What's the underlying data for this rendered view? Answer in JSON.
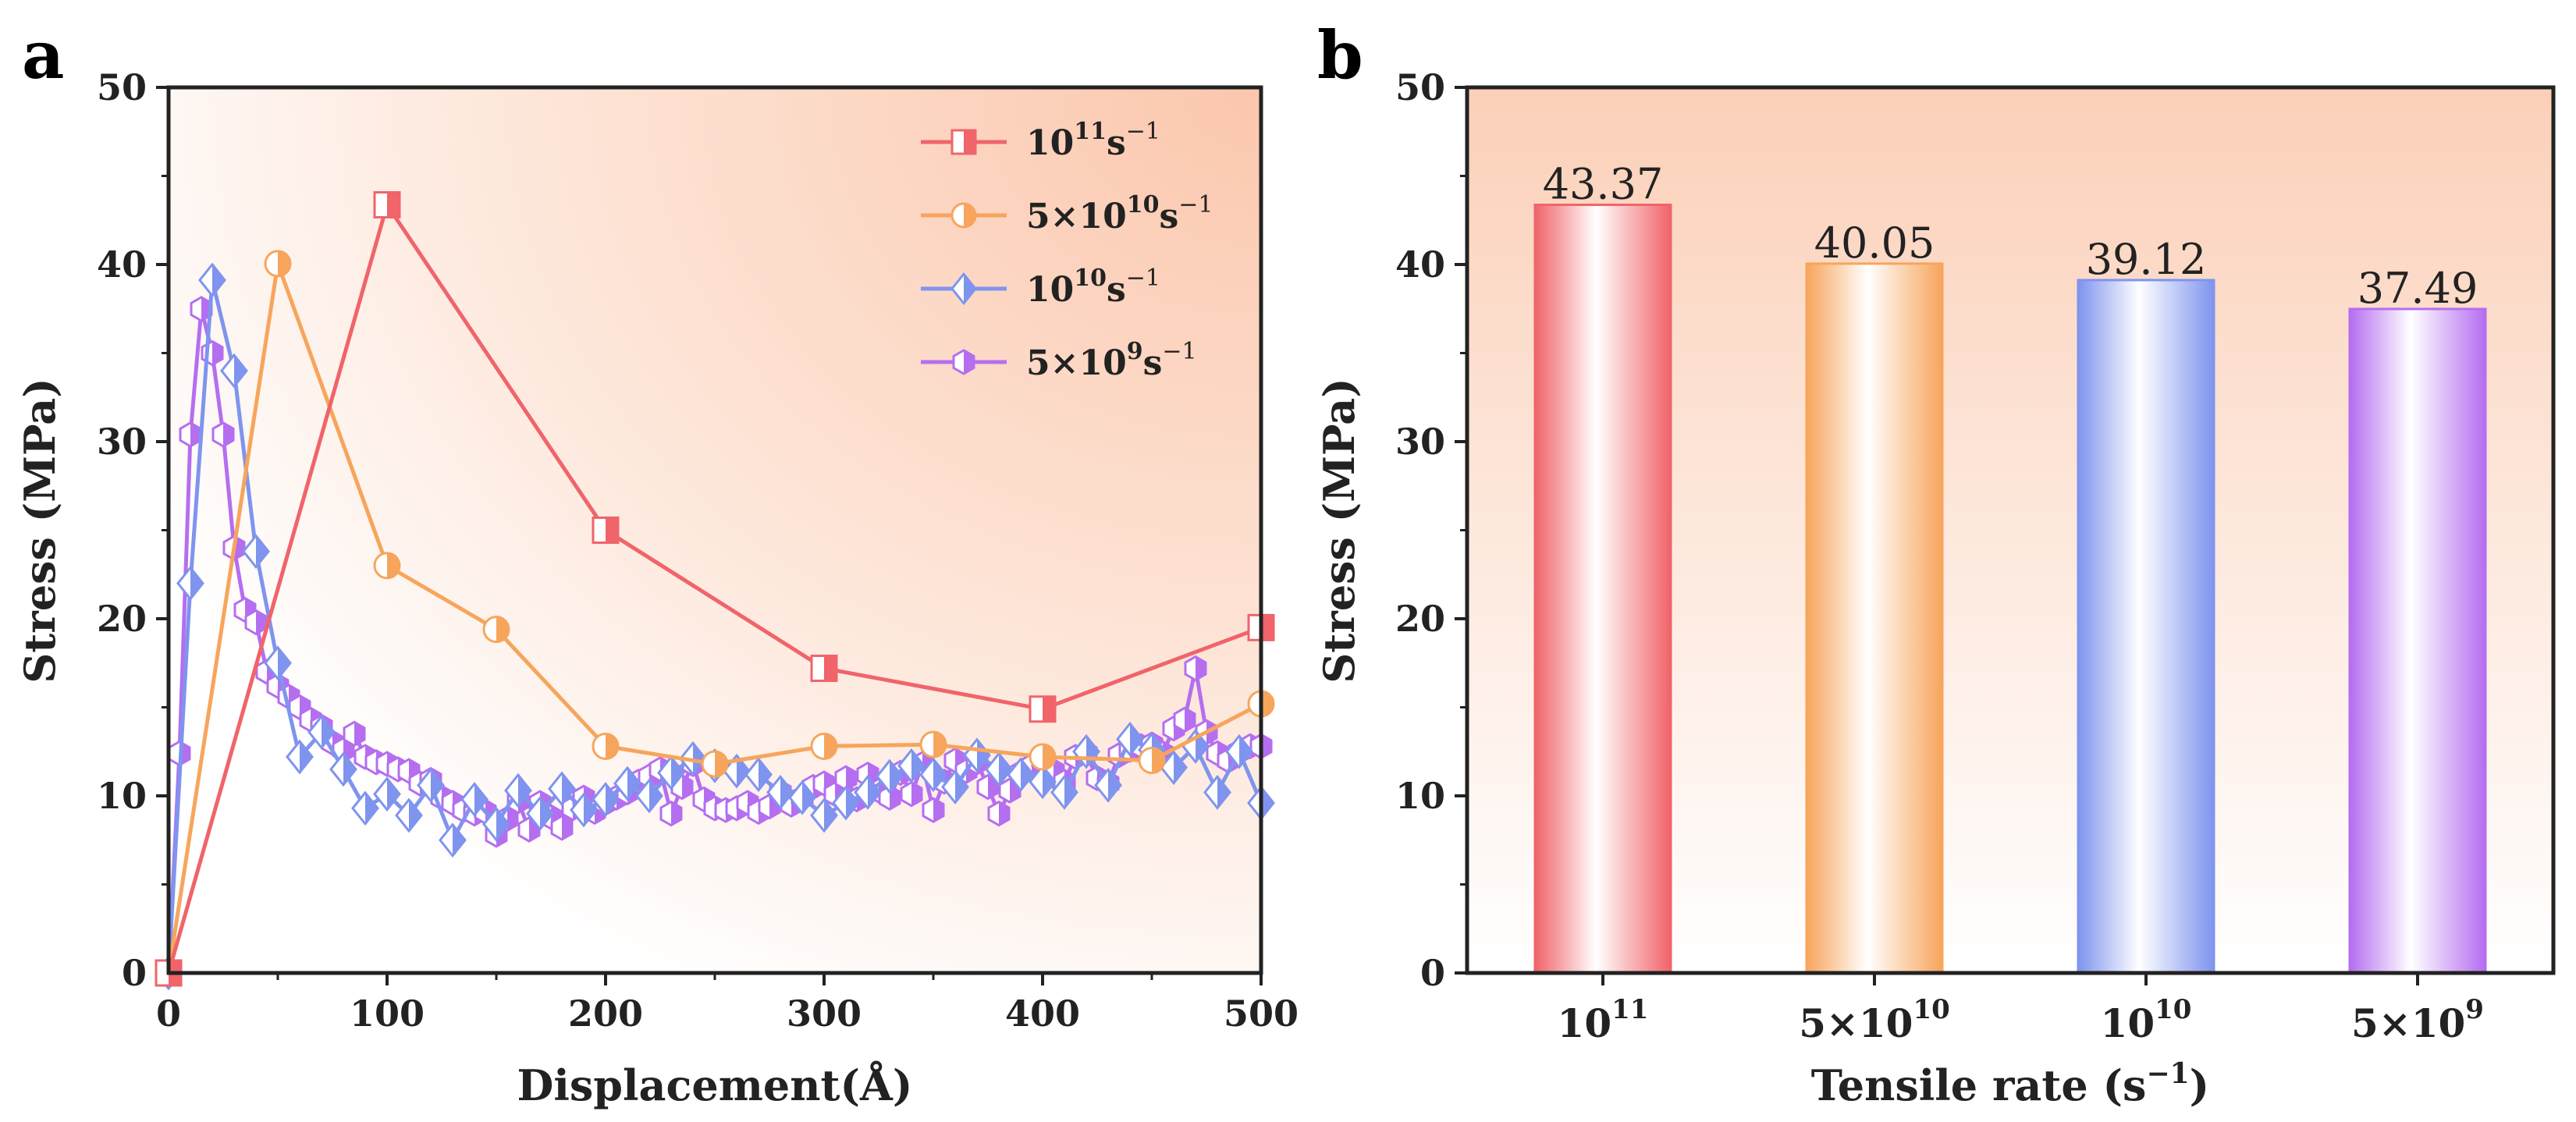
{
  "panels": {
    "a": {
      "label": "a"
    },
    "b": {
      "label": "b"
    }
  },
  "colors": {
    "r11": "#f0646a",
    "r5e10": "#f7a55c",
    "r10": "#7f94ee",
    "r5e9": "#b56ef0",
    "axis": "#222222",
    "bg_gradient": "#fbd3bd"
  },
  "chart_data": [
    {
      "type": "line",
      "panel": "a",
      "xlabel": "Displacement(Å)",
      "ylabel": "Stress (MPa)",
      "xlim": [
        0,
        500
      ],
      "ylim": [
        0,
        50
      ],
      "xticks": [
        "0",
        "100",
        "200",
        "300",
        "400",
        "500"
      ],
      "yticks": [
        "0",
        "10",
        "20",
        "30",
        "40",
        "50"
      ],
      "legend_position": "top-right",
      "series": [
        {
          "name": "10¹¹s⁻¹",
          "legend": {
            "base": "10",
            "exp1": "11",
            "unit": "s",
            "exp2": "−1"
          },
          "marker": "square",
          "x": [
            0,
            100,
            200,
            300,
            400,
            500
          ],
          "y": [
            0,
            43.37,
            25.0,
            17.2,
            14.9,
            19.5
          ]
        },
        {
          "name": "5×10¹⁰s⁻¹",
          "legend": {
            "base": "5×10",
            "exp1": "10",
            "unit": "s",
            "exp2": "−1"
          },
          "marker": "circle",
          "x": [
            0,
            50,
            100,
            150,
            200,
            250,
            300,
            350,
            400,
            450,
            500
          ],
          "y": [
            0,
            40.05,
            23.0,
            19.4,
            12.8,
            11.8,
            12.8,
            12.9,
            12.2,
            12.0,
            15.2
          ]
        },
        {
          "name": "10¹⁰s⁻¹",
          "legend": {
            "base": "10",
            "exp1": "10",
            "unit": "s",
            "exp2": "−1"
          },
          "marker": "diamond",
          "x": [
            0,
            10,
            20,
            30,
            40,
            50,
            60,
            70,
            80,
            90,
            100,
            110,
            120,
            130,
            140,
            150,
            160,
            170,
            180,
            190,
            200,
            210,
            220,
            230,
            240,
            250,
            260,
            270,
            280,
            290,
            300,
            310,
            320,
            330,
            340,
            350,
            360,
            370,
            380,
            390,
            400,
            410,
            420,
            430,
            440,
            450,
            460,
            470,
            480,
            490,
            500
          ],
          "y": [
            0,
            22.0,
            39.12,
            34.0,
            23.8,
            17.5,
            12.2,
            13.6,
            11.5,
            9.3,
            10.1,
            8.9,
            10.6,
            7.5,
            9.8,
            8.4,
            10.3,
            9.0,
            10.4,
            9.2,
            9.8,
            10.7,
            10.0,
            11.3,
            12.1,
            11.7,
            11.4,
            11.2,
            10.2,
            9.9,
            8.9,
            9.6,
            10.2,
            11.1,
            11.7,
            11.2,
            10.5,
            12.3,
            11.5,
            11.2,
            10.8,
            10.2,
            12.5,
            10.6,
            13.2,
            12.6,
            11.6,
            12.8,
            10.2,
            12.5,
            9.6
          ]
        },
        {
          "name": "5×10⁹s⁻¹",
          "legend": {
            "base": "5×10",
            "exp1": "9",
            "unit": "s",
            "exp2": "−1"
          },
          "marker": "hexagon",
          "x": [
            0,
            5,
            10,
            15,
            20,
            25,
            30,
            35,
            40,
            45,
            50,
            55,
            60,
            65,
            70,
            75,
            80,
            85,
            90,
            95,
            100,
            105,
            110,
            115,
            120,
            125,
            130,
            135,
            140,
            145,
            150,
            155,
            160,
            165,
            170,
            175,
            180,
            185,
            190,
            195,
            200,
            205,
            210,
            215,
            220,
            225,
            230,
            235,
            240,
            245,
            250,
            255,
            260,
            265,
            270,
            275,
            280,
            285,
            290,
            295,
            300,
            305,
            310,
            315,
            320,
            325,
            330,
            335,
            340,
            345,
            350,
            355,
            360,
            365,
            370,
            375,
            380,
            385,
            390,
            395,
            400,
            405,
            410,
            415,
            420,
            425,
            430,
            435,
            440,
            445,
            450,
            455,
            460,
            465,
            470,
            475,
            480,
            485,
            490,
            495,
            500
          ],
          "y": [
            0,
            12.4,
            30.4,
            37.49,
            35.0,
            30.4,
            24.0,
            20.5,
            19.8,
            17.0,
            16.2,
            15.6,
            15.0,
            14.3,
            13.9,
            13.0,
            12.6,
            13.5,
            12.2,
            11.9,
            11.8,
            11.5,
            11.4,
            10.7,
            10.9,
            9.9,
            9.6,
            9.2,
            9.0,
            9.1,
            7.8,
            8.7,
            9.7,
            8.1,
            9.6,
            8.8,
            8.2,
            9.3,
            9.9,
            9.1,
            9.6,
            9.9,
            10.2,
            10.8,
            11.1,
            11.5,
            9.0,
            10.5,
            11.8,
            9.8,
            9.3,
            9.2,
            9.3,
            9.6,
            9.1,
            9.4,
            10.2,
            9.5,
            9.9,
            10.5,
            10.7,
            10.1,
            11.0,
            9.8,
            11.2,
            10.3,
            9.9,
            11.3,
            10.1,
            11.8,
            9.2,
            10.8,
            12.0,
            11.4,
            11.9,
            10.5,
            9.0,
            10.3,
            11.3,
            11.7,
            12.0,
            11.4,
            10.8,
            12.2,
            12.4,
            11.0,
            10.7,
            12.3,
            12.6,
            12.8,
            12.9,
            12.4,
            13.8,
            14.3,
            17.2,
            13.6,
            12.4,
            12.0,
            12.5,
            12.8,
            12.8
          ]
        }
      ]
    },
    {
      "type": "bar",
      "panel": "b",
      "xlabel": "Tensile rate (s−1)",
      "xlabel_parts": {
        "main": "Tensile rate (s",
        "sup": "−1",
        "close": ")"
      },
      "ylabel": "Stress (MPa)",
      "ylim": [
        0,
        50
      ],
      "yticks": [
        "0",
        "10",
        "20",
        "30",
        "40",
        "50"
      ],
      "categories": [
        {
          "base": "10",
          "exp": "11"
        },
        {
          "base": "5×10",
          "exp": "10"
        },
        {
          "base": "10",
          "exp": "10"
        },
        {
          "base": "5×10",
          "exp": "9"
        }
      ],
      "values": [
        43.37,
        40.05,
        39.12,
        37.49
      ],
      "value_labels": [
        "43.37",
        "40.05",
        "39.12",
        "37.49"
      ]
    }
  ]
}
